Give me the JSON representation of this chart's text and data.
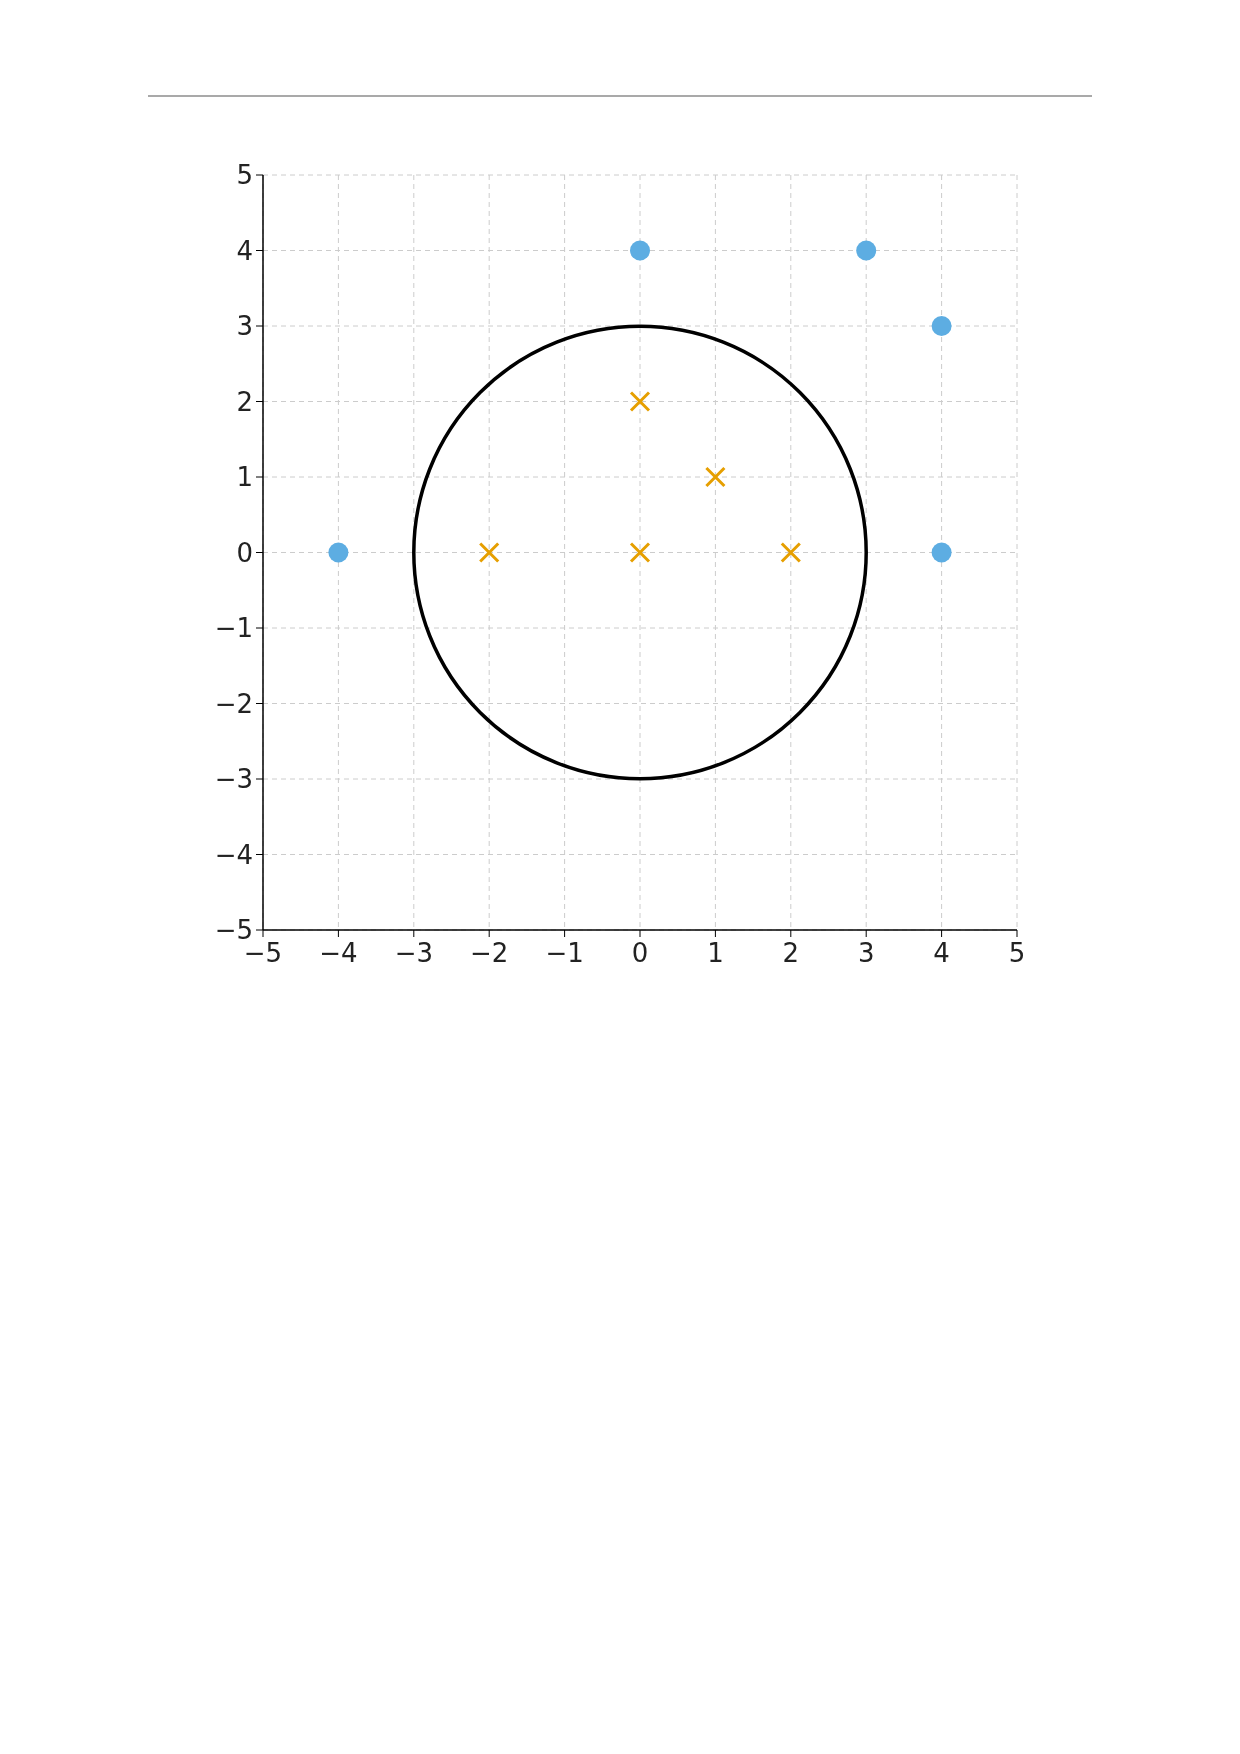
{
  "chart_data": {
    "type": "scatter",
    "xlim": [
      -5,
      5
    ],
    "ylim": [
      -5,
      5
    ],
    "xticks": [
      {
        "value": -5,
        "label": "−5"
      },
      {
        "value": -4,
        "label": "−4"
      },
      {
        "value": -3,
        "label": "−3"
      },
      {
        "value": -2,
        "label": "−2"
      },
      {
        "value": -1,
        "label": "−1"
      },
      0,
      1,
      2,
      3,
      4,
      5
    ],
    "yticks": [
      {
        "value": -5,
        "label": "−5"
      },
      {
        "value": -4,
        "label": "−4"
      },
      {
        "value": -3,
        "label": "−3"
      },
      {
        "value": -2,
        "label": "−2"
      },
      {
        "value": -1,
        "label": "−1"
      },
      0,
      1,
      2,
      3,
      4,
      5
    ],
    "grid": true,
    "series": [
      {
        "type": "scatter",
        "color": "#5dade2",
        "marker": "circle",
        "x": [
          0,
          3,
          4,
          -4,
          4
        ],
        "values": [
          4,
          4,
          3,
          0,
          0
        ]
      },
      {
        "type": "scatter",
        "color": "#e69f00",
        "marker": "cross",
        "x": [
          0,
          1,
          -2,
          0,
          2
        ],
        "values": [
          2,
          1,
          0,
          0,
          0
        ]
      }
    ]
  }
}
